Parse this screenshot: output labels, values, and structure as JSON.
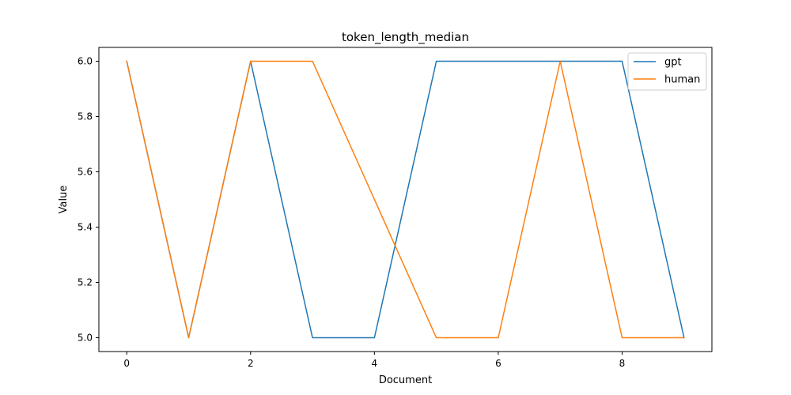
{
  "chart_data": {
    "type": "line",
    "title": "token_length_median",
    "xlabel": "Document",
    "ylabel": "Value",
    "x": [
      0,
      1,
      2,
      3,
      4,
      5,
      6,
      7,
      8,
      9
    ],
    "xlim": [
      -0.45,
      9.45
    ],
    "ylim": [
      4.95,
      6.05
    ],
    "xticks": [
      0,
      2,
      4,
      6,
      8
    ],
    "yticks": [
      5.0,
      5.2,
      5.4,
      5.6,
      5.8,
      6.0
    ],
    "xtick_labels": [
      "0",
      "2",
      "4",
      "6",
      "8"
    ],
    "ytick_labels": [
      "5.0",
      "5.2",
      "5.4",
      "5.6",
      "5.8",
      "6.0"
    ],
    "grid": false,
    "legend_position": "top-right",
    "series": [
      {
        "name": "gpt",
        "color": "#1f77b4",
        "values": [
          6,
          5,
          6,
          5,
          5,
          6,
          6,
          6,
          6,
          5
        ]
      },
      {
        "name": "human",
        "color": "#ff7f0e",
        "values": [
          6,
          5,
          6,
          6,
          5.5,
          5,
          5,
          6,
          5,
          5
        ]
      }
    ]
  }
}
